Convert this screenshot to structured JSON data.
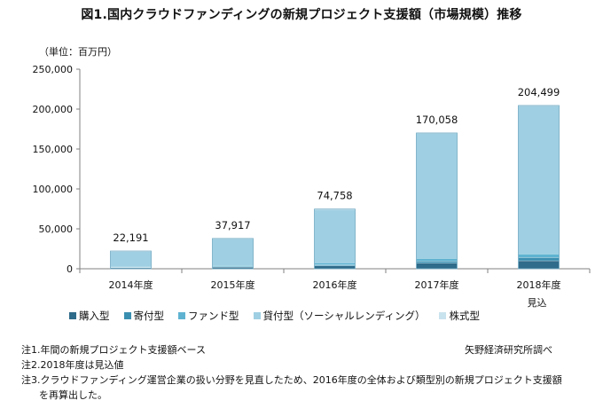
{
  "chart_data": {
    "type": "bar",
    "stacked": true,
    "title": "図1.国内クラウドファンディングの新規プロジェクト支援額（市場規模）推移",
    "unit_label": "（単位：百万円）",
    "categories": [
      "2014年度",
      "2015年度",
      "2016年度",
      "2017年度",
      "2018年度"
    ],
    "category_notes": [
      "",
      "",
      "",
      "",
      "見込"
    ],
    "totals": [
      22191,
      37917,
      74758,
      170058,
      204499
    ],
    "total_labels": [
      "22,191",
      "37,917",
      "74,758",
      "170,058",
      "204,499"
    ],
    "series": [
      {
        "name": "購入型",
        "color": "#2F6B8A",
        "values": [
          1200,
          2100,
          3700,
          7000,
          10000
        ]
      },
      {
        "name": "寄付型",
        "color": "#3A8FB0",
        "values": [
          200,
          400,
          1100,
          2500,
          4000
        ]
      },
      {
        "name": "ファンド型",
        "color": "#5FB3D1",
        "values": [
          800,
          1500,
          2900,
          3500,
          4500
        ]
      },
      {
        "name": "貸付型（ソーシャルレンディング）",
        "color": "#9FCFE2",
        "values": [
          19500,
          33500,
          66600,
          156600,
          185500
        ]
      },
      {
        "name": "株式型",
        "color": "#C9E3EE",
        "values": [
          491,
          417,
          458,
          458,
          499
        ]
      }
    ],
    "ylim": [
      0,
      250000
    ],
    "yticks": [
      0,
      50000,
      100000,
      150000,
      200000,
      250000
    ],
    "ytick_labels": [
      "0",
      "50,000",
      "100,000",
      "150,000",
      "200,000",
      "250,000"
    ],
    "grid": false,
    "legend_position": "bottom"
  },
  "notes": [
    "注1.年間の新規プロジェクト支援額ベース",
    "注2.2018年度は見込値",
    "注3.クラウドファンディング運営企業の扱い分野を見直したため、2016年度の全体および類型別の新規プロジェクト支援額",
    "を再算出した。"
  ],
  "source": "矢野経済研究所調べ"
}
